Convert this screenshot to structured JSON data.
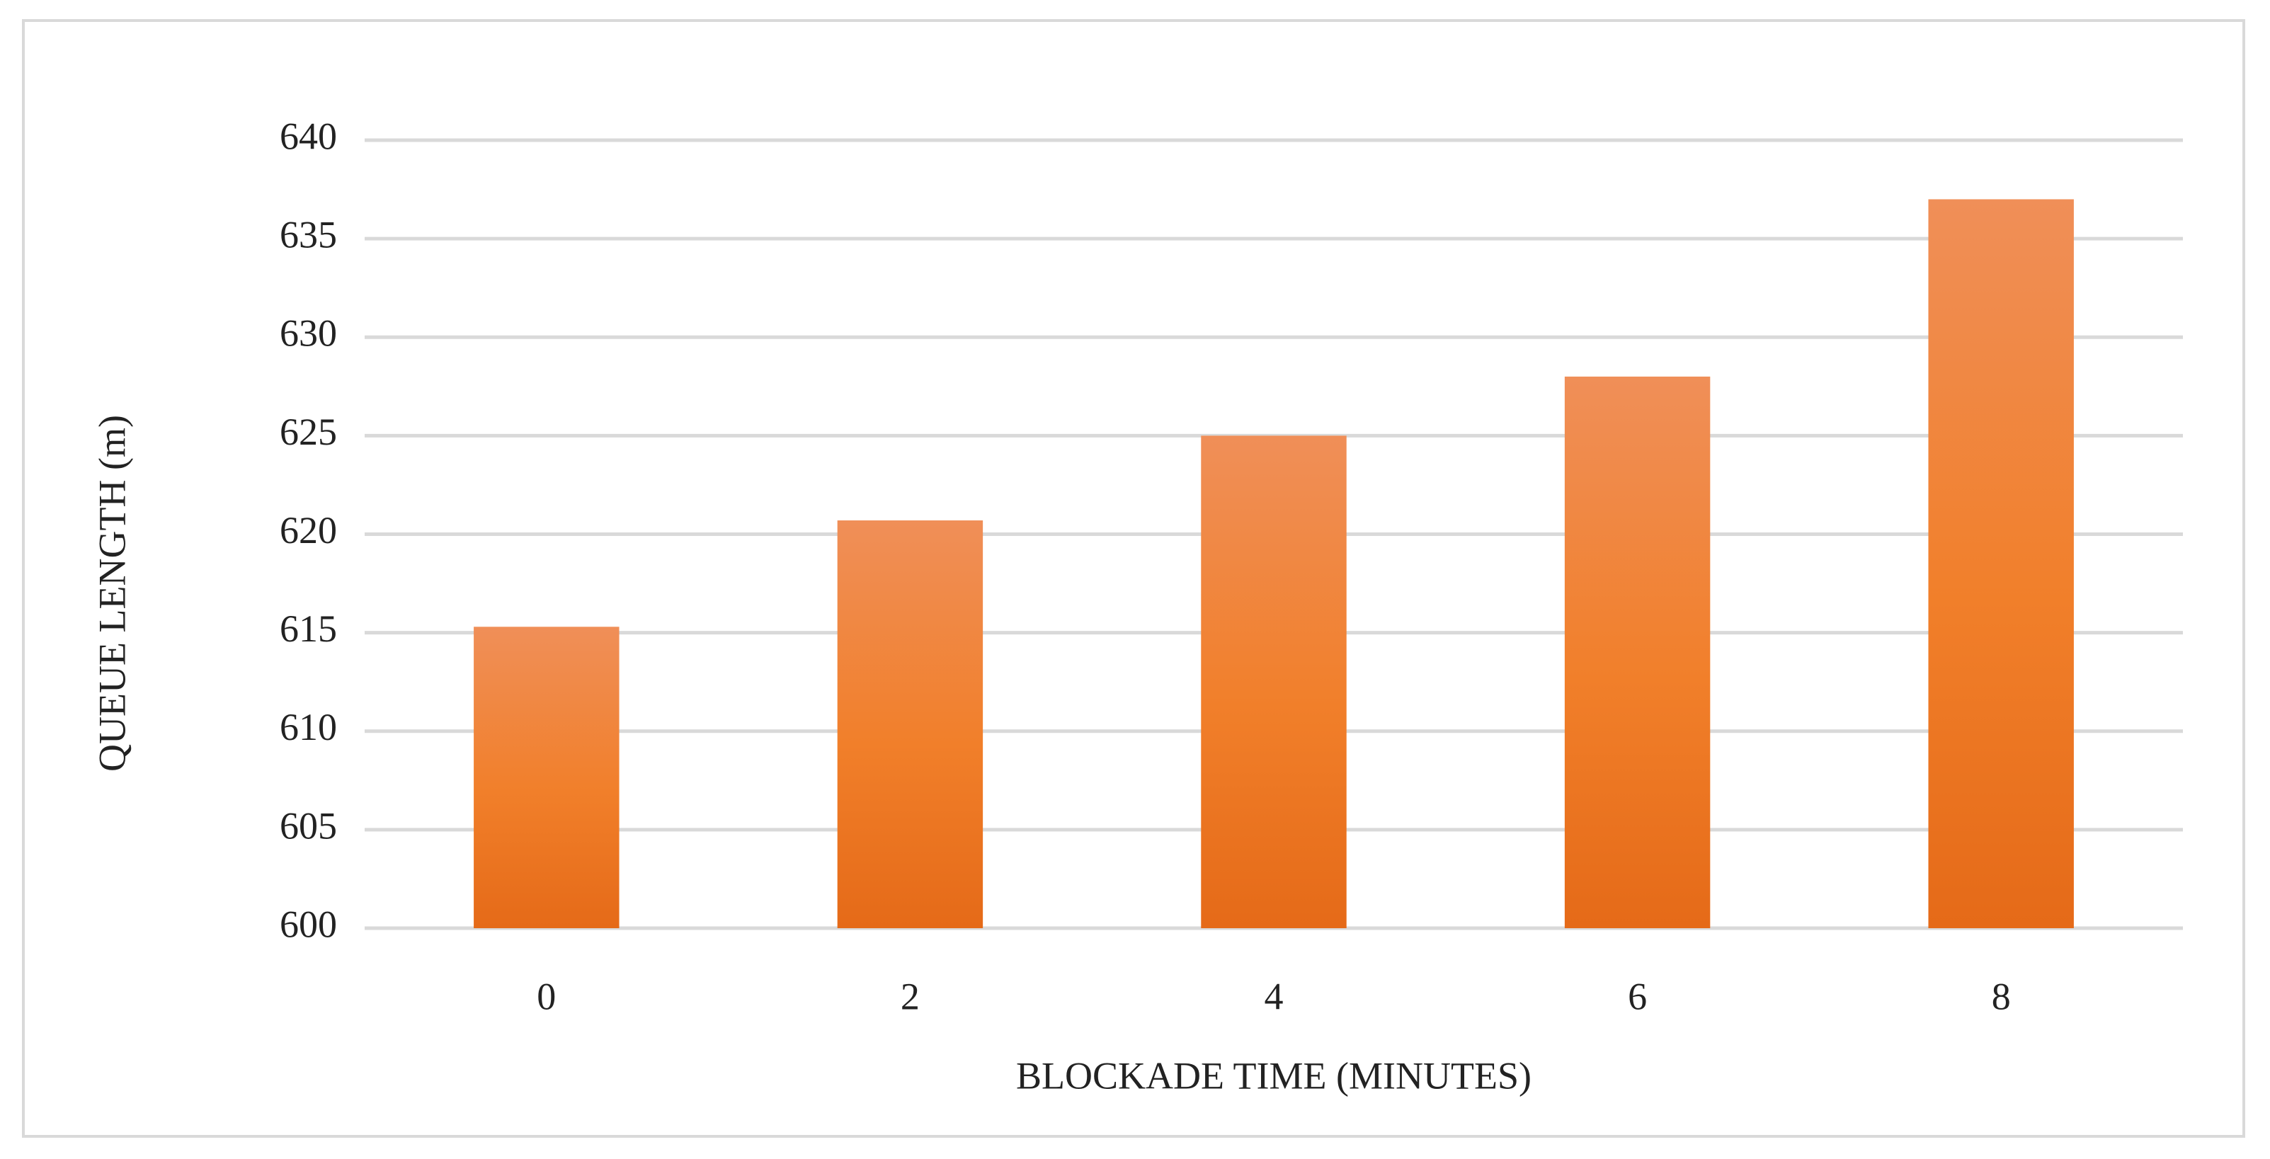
{
  "chart_data": {
    "type": "bar",
    "x_label": "BLOCKADE TIME (MINUTES)",
    "y_label": "QUEUE LENGTH (m)",
    "categories": [
      "0",
      "2",
      "4",
      "6",
      "8"
    ],
    "values": [
      615.3,
      620.7,
      625,
      628,
      637
    ],
    "color": "#ed7d31",
    "ylim": [
      600,
      640
    ],
    "yticks": [
      600,
      605,
      610,
      615,
      620,
      625,
      630,
      635,
      640
    ],
    "grid": true
  }
}
